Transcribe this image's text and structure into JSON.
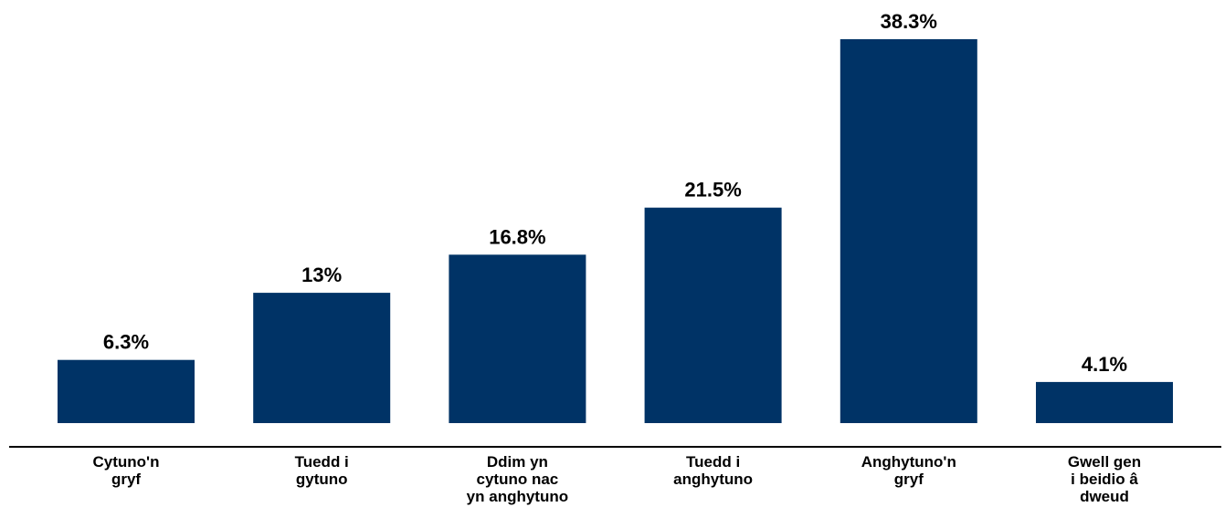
{
  "chart_data": {
    "type": "bar",
    "categories": [
      [
        "Cytuno'n",
        "gryf"
      ],
      [
        "Tuedd i",
        "gytuno"
      ],
      [
        "Ddim yn",
        "cytuno nac",
        "yn anghytuno"
      ],
      [
        "Tuedd i",
        "anghytuno"
      ],
      [
        "Anghytuno'n",
        "gryf"
      ],
      [
        "Gwell gen",
        "i beidio â",
        "dweud"
      ]
    ],
    "values": [
      6.3,
      13,
      16.8,
      21.5,
      38.3,
      4.1
    ],
    "data_labels": [
      "6.3%",
      "13%",
      "16.8%",
      "21.5%",
      "38.3%",
      "4.1%"
    ],
    "title": "",
    "xlabel": "",
    "ylabel": "",
    "ylim": [
      0,
      38.3
    ],
    "grid": false,
    "legend": "none",
    "colors": {
      "bar": "#003366",
      "axis": "#000000",
      "text": "#000000"
    }
  }
}
